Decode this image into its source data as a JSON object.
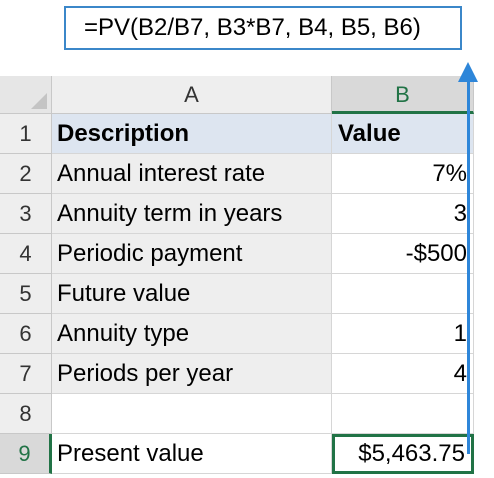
{
  "formula_bar": {
    "text": "=PV(B2/B7, B3*B7, B4, B5, B6)"
  },
  "columns": [
    "A",
    "B"
  ],
  "rows": [
    {
      "num": "1",
      "a": "Description",
      "b": "Value"
    },
    {
      "num": "2",
      "a": "Annual interest rate",
      "b": "7%"
    },
    {
      "num": "3",
      "a": "Annuity term in years",
      "b": "3"
    },
    {
      "num": "4",
      "a": "Periodic payment",
      "b": "-$500"
    },
    {
      "num": "5",
      "a": "Future value",
      "b": ""
    },
    {
      "num": "6",
      "a": "Annuity type",
      "b": "1"
    },
    {
      "num": "7",
      "a": "Periods per year",
      "b": "4"
    },
    {
      "num": "8",
      "a": "",
      "b": ""
    },
    {
      "num": "9",
      "a": "Present value",
      "b": "$5,463.75"
    }
  ],
  "colors": {
    "accent": "#217346",
    "arrow": "#2e86d9",
    "header_fill": "#dde5f0"
  }
}
